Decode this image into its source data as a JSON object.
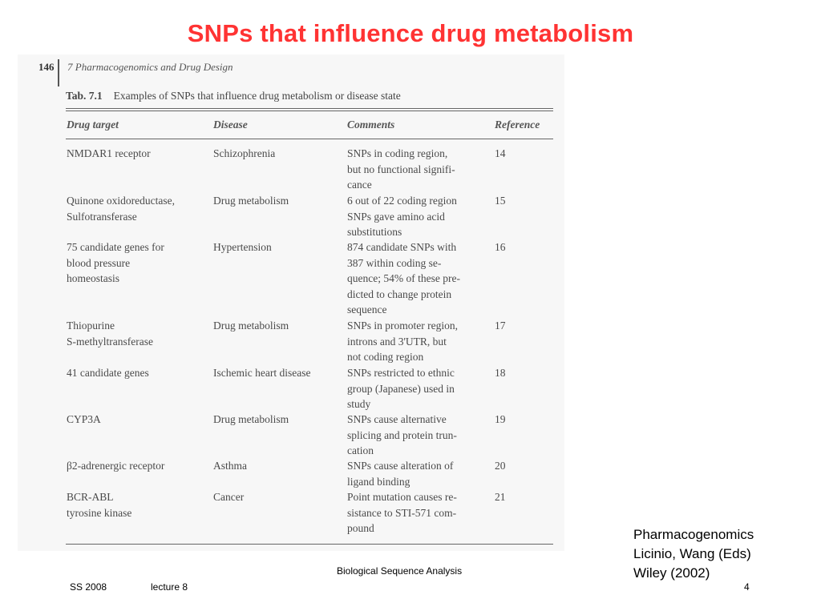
{
  "slide": {
    "title": "SNPs that influence drug metabolism"
  },
  "scan": {
    "page_number": "146",
    "chapter": "7 Pharmacogenomics and Drug Design",
    "table_label": "Tab. 7.1",
    "table_caption": "Examples of SNPs that influence drug metabolism or disease state",
    "headers": [
      "Drug target",
      "Disease",
      "Comments",
      "Reference"
    ],
    "rows": [
      {
        "target": "NMDAR1 receptor",
        "disease": "Schizophrenia",
        "comments": "SNPs in coding region,\nbut no functional signifi-\ncance",
        "reference": "14"
      },
      {
        "target": "Quinone oxidoreductase,\nSulfotransferase",
        "disease": "Drug metabolism",
        "comments": "6 out of 22 coding region\nSNPs gave amino acid\nsubstitutions",
        "reference": "15"
      },
      {
        "target": "75 candidate genes for\nblood pressure\nhomeostasis",
        "disease": "Hypertension",
        "comments": "874 candidate SNPs with\n387 within coding se-\nquence; 54% of these pre-\ndicted to change protein\nsequence",
        "reference": "16"
      },
      {
        "target": "Thiopurine\nS-methyltransferase",
        "disease": "Drug metabolism",
        "comments": "SNPs in promoter region,\nintrons and 3'UTR, but\nnot coding region",
        "reference": "17"
      },
      {
        "target": "41 candidate genes",
        "disease": "Ischemic heart disease",
        "comments": "SNPs restricted to ethnic\ngroup (Japanese) used in\nstudy",
        "reference": "18"
      },
      {
        "target": "CYP3A",
        "disease": "Drug metabolism",
        "comments": "SNPs cause alternative\nsplicing and protein trun-\ncation",
        "reference": "19"
      },
      {
        "target": "β2-adrenergic receptor",
        "disease": "Asthma",
        "comments": "SNPs cause alteration of\nligand binding",
        "reference": "20"
      },
      {
        "target": "BCR-ABL\ntyrosine kinase",
        "disease": "Cancer",
        "comments": "Point mutation causes re-\nsistance to STI-571 com-\npound",
        "reference": "21"
      }
    ]
  },
  "citation": {
    "line1": "Pharmacogenomics",
    "line2": "Licinio, Wang (Eds)",
    "line3": "Wiley (2002)"
  },
  "footer": {
    "course": "Biological Sequence Analysis",
    "semester": "SS 2008",
    "lecture": "lecture 8",
    "page": "4"
  }
}
